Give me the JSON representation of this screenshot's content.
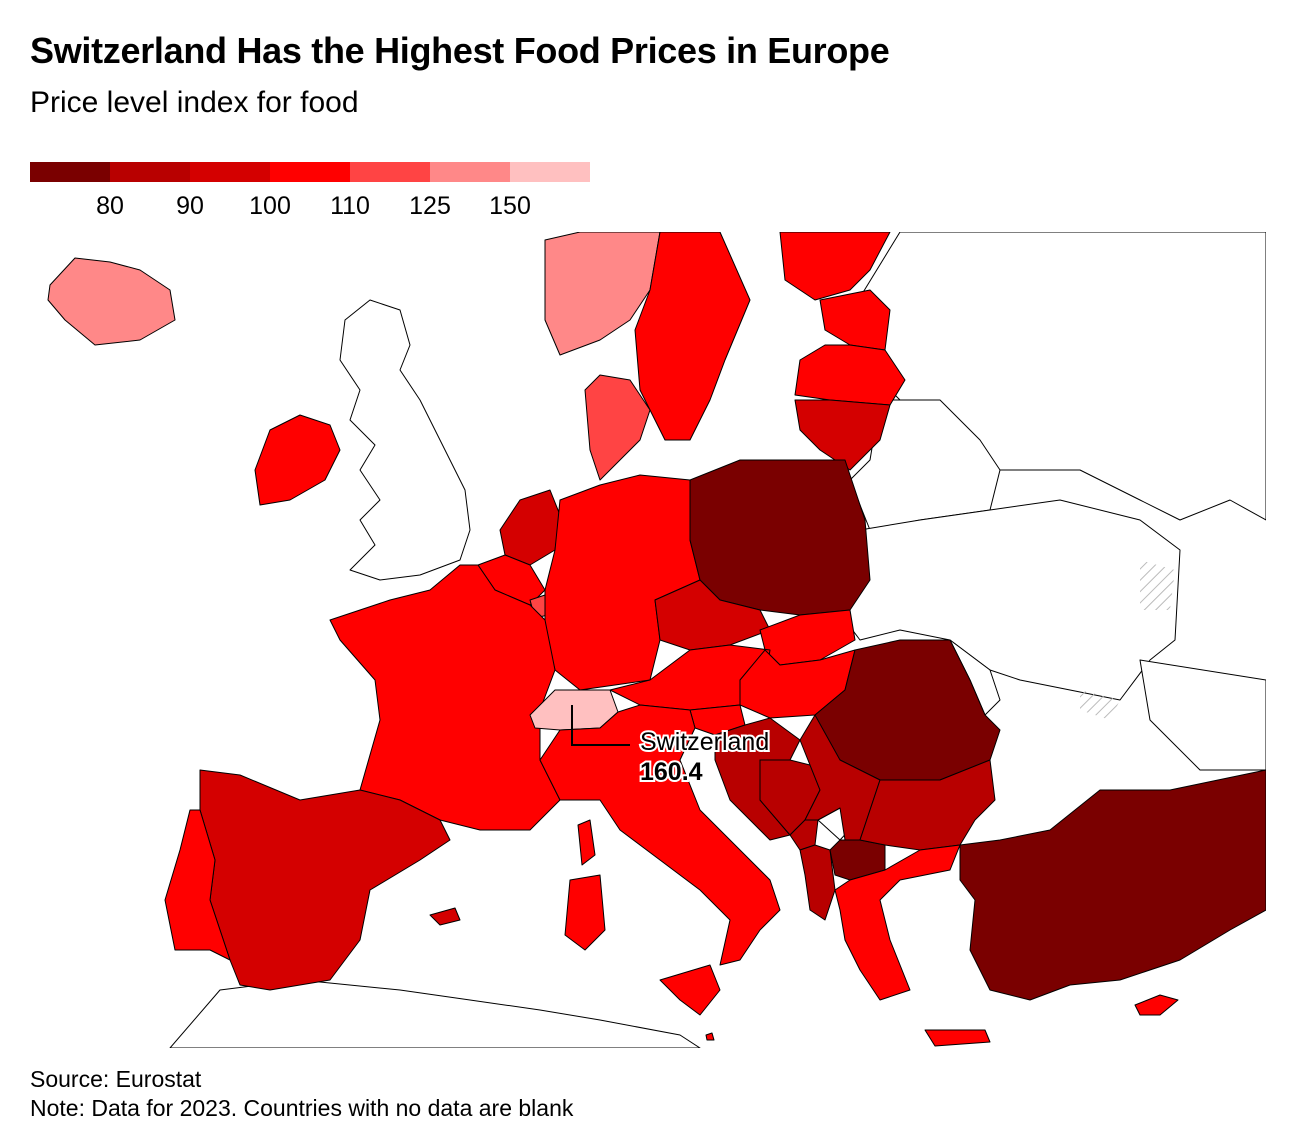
{
  "title": "Switzerland Has the Highest Food Prices in Europe",
  "subtitle": "Price level index for food",
  "legend": {
    "colors": [
      "#7a0000",
      "#b80000",
      "#d40000",
      "#ff0000",
      "#ff4444",
      "#ff8888",
      "#ffc0c0"
    ],
    "ticks": [
      "80",
      "90",
      "100",
      "110",
      "125",
      "150"
    ]
  },
  "annotation": {
    "name": "Switzerland",
    "value": "160.4"
  },
  "source": "Source: Eurostat",
  "note": "Note: Data for 2023. Countries with no data are blank",
  "map_data": {
    "countries": [
      {
        "name": "Switzerland",
        "bin": 6,
        "color": "#ffc0c0"
      },
      {
        "name": "Iceland",
        "bin": 5,
        "color": "#ff8888"
      },
      {
        "name": "Norway",
        "bin": 5,
        "color": "#ff8888"
      },
      {
        "name": "Denmark",
        "bin": 4,
        "color": "#ff4444"
      },
      {
        "name": "Luxembourg",
        "bin": 4,
        "color": "#ff4444"
      },
      {
        "name": "Sweden",
        "bin": 3,
        "color": "#ff0000"
      },
      {
        "name": "Finland",
        "bin": 3,
        "color": "#ff0000"
      },
      {
        "name": "Estonia",
        "bin": 3,
        "color": "#ff0000"
      },
      {
        "name": "Latvia",
        "bin": 3,
        "color": "#ff0000"
      },
      {
        "name": "Ireland",
        "bin": 3,
        "color": "#ff0000"
      },
      {
        "name": "Germany",
        "bin": 3,
        "color": "#ff0000"
      },
      {
        "name": "France",
        "bin": 3,
        "color": "#ff0000"
      },
      {
        "name": "Belgium",
        "bin": 3,
        "color": "#ff0000"
      },
      {
        "name": "Austria",
        "bin": 3,
        "color": "#ff0000"
      },
      {
        "name": "Italy",
        "bin": 3,
        "color": "#ff0000"
      },
      {
        "name": "Slovakia",
        "bin": 3,
        "color": "#ff0000"
      },
      {
        "name": "Hungary",
        "bin": 3,
        "color": "#ff0000"
      },
      {
        "name": "Slovenia",
        "bin": 3,
        "color": "#ff0000"
      },
      {
        "name": "Greece",
        "bin": 3,
        "color": "#ff0000"
      },
      {
        "name": "Portugal",
        "bin": 3,
        "color": "#ff0000"
      },
      {
        "name": "Cyprus",
        "bin": 3,
        "color": "#ff0000"
      },
      {
        "name": "Malta",
        "bin": 3,
        "color": "#ff0000"
      },
      {
        "name": "Netherlands",
        "bin": 2,
        "color": "#d40000"
      },
      {
        "name": "Czechia",
        "bin": 2,
        "color": "#d40000"
      },
      {
        "name": "Lithuania",
        "bin": 2,
        "color": "#d40000"
      },
      {
        "name": "Spain",
        "bin": 2,
        "color": "#d40000"
      },
      {
        "name": "Croatia",
        "bin": 1,
        "color": "#b80000"
      },
      {
        "name": "Bosnia and Herzegovina",
        "bin": 1,
        "color": "#b80000"
      },
      {
        "name": "Serbia",
        "bin": 1,
        "color": "#b80000"
      },
      {
        "name": "Montenegro",
        "bin": 1,
        "color": "#b80000"
      },
      {
        "name": "Albania",
        "bin": 1,
        "color": "#b80000"
      },
      {
        "name": "Bulgaria",
        "bin": 1,
        "color": "#b80000"
      },
      {
        "name": "Poland",
        "bin": 0,
        "color": "#7a0000"
      },
      {
        "name": "Romania",
        "bin": 0,
        "color": "#7a0000"
      },
      {
        "name": "North Macedonia",
        "bin": 0,
        "color": "#7a0000"
      },
      {
        "name": "Turkey",
        "bin": 0,
        "color": "#7a0000"
      },
      {
        "name": "United Kingdom",
        "bin": null,
        "color": "#ffffff"
      },
      {
        "name": "Ukraine",
        "bin": null,
        "color": "#ffffff"
      },
      {
        "name": "Belarus",
        "bin": null,
        "color": "#ffffff"
      },
      {
        "name": "Russia",
        "bin": null,
        "color": "#ffffff"
      },
      {
        "name": "Moldova",
        "bin": null,
        "color": "#ffffff"
      },
      {
        "name": "Kosovo",
        "bin": null,
        "color": "#ffffff"
      }
    ]
  }
}
